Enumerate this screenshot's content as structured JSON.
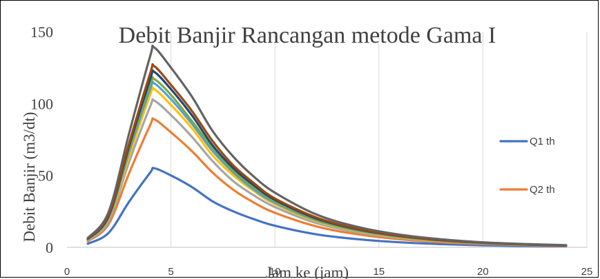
{
  "chart_data": {
    "type": "line",
    "title": "Debit Banjir Rancangan metode Gama I",
    "xlabel": "Jam ke (jam)",
    "ylabel": "Debit Banjir (m3/dt)",
    "xlim": [
      0,
      25
    ],
    "ylim": [
      0,
      150
    ],
    "xticks": [
      "0",
      "5",
      "10",
      "15",
      "20",
      "25"
    ],
    "yticks": [
      "0",
      "50",
      "100",
      "150"
    ],
    "grid": "vertical",
    "legend_position": "right",
    "x": [
      1,
      2,
      3,
      4,
      4.2,
      5,
      6,
      7,
      8,
      9,
      10,
      12,
      14,
      16,
      18,
      20,
      22,
      24
    ],
    "series": [
      {
        "name": "Q1 th",
        "color": "#4472C4",
        "values": [
          2.5,
          10,
          32,
          52,
          55,
          50,
          42,
          32,
          25,
          19.5,
          15,
          9,
          5.6,
          3.5,
          2.2,
          1.4,
          0.9,
          0.6
        ]
      },
      {
        "name": "Q2 th",
        "color": "#ED7D31",
        "values": [
          4.2,
          16,
          52,
          85,
          89,
          80,
          67,
          52,
          40,
          31,
          24,
          14.5,
          9,
          5.6,
          3.5,
          2.3,
          1.5,
          0.9
        ]
      },
      {
        "color": "#A5A5A5",
        "values": [
          4.8,
          18,
          60,
          98,
          102,
          92,
          77,
          60,
          46,
          36,
          28,
          16.8,
          10.4,
          6.5,
          4.1,
          2.6,
          1.7,
          1.1
        ]
      },
      {
        "color": "#FFC000",
        "values": [
          5.2,
          20,
          64,
          106,
          110,
          99,
          83,
          64,
          50,
          39,
          30,
          18,
          11.2,
          7,
          4.4,
          2.8,
          1.8,
          1.2
        ]
      },
      {
        "color": "#5B9BD5",
        "values": [
          5.4,
          20.5,
          67,
          110,
          114,
          103,
          86,
          67,
          52,
          40,
          31,
          18.7,
          11.6,
          7.3,
          4.6,
          2.9,
          1.9,
          1.2
        ]
      },
      {
        "color": "#70AD47",
        "values": [
          5.6,
          21,
          69,
          113,
          117,
          106,
          88,
          69,
          53,
          41.5,
          32,
          19.2,
          11.9,
          7.5,
          4.7,
          3,
          1.9,
          1.2
        ]
      },
      {
        "color": "#264478",
        "values": [
          5.7,
          21.5,
          71,
          117,
          122,
          110,
          92,
          71,
          55,
          43,
          33,
          20,
          12.4,
          7.8,
          4.9,
          3.1,
          2,
          1.3
        ]
      },
      {
        "color": "#9E480E",
        "values": [
          5.9,
          22.5,
          73,
          121,
          126,
          113,
          95,
          74,
          57,
          44.5,
          34,
          20.7,
          12.8,
          8,
          5,
          3.2,
          2.1,
          1.3
        ]
      },
      {
        "color": "#636363",
        "values": [
          6.4,
          24.5,
          80,
          133,
          139,
          125,
          105,
          81,
          63,
          49,
          38,
          22.8,
          14.1,
          8.8,
          5.6,
          3.5,
          2.3,
          1.5
        ]
      }
    ]
  }
}
